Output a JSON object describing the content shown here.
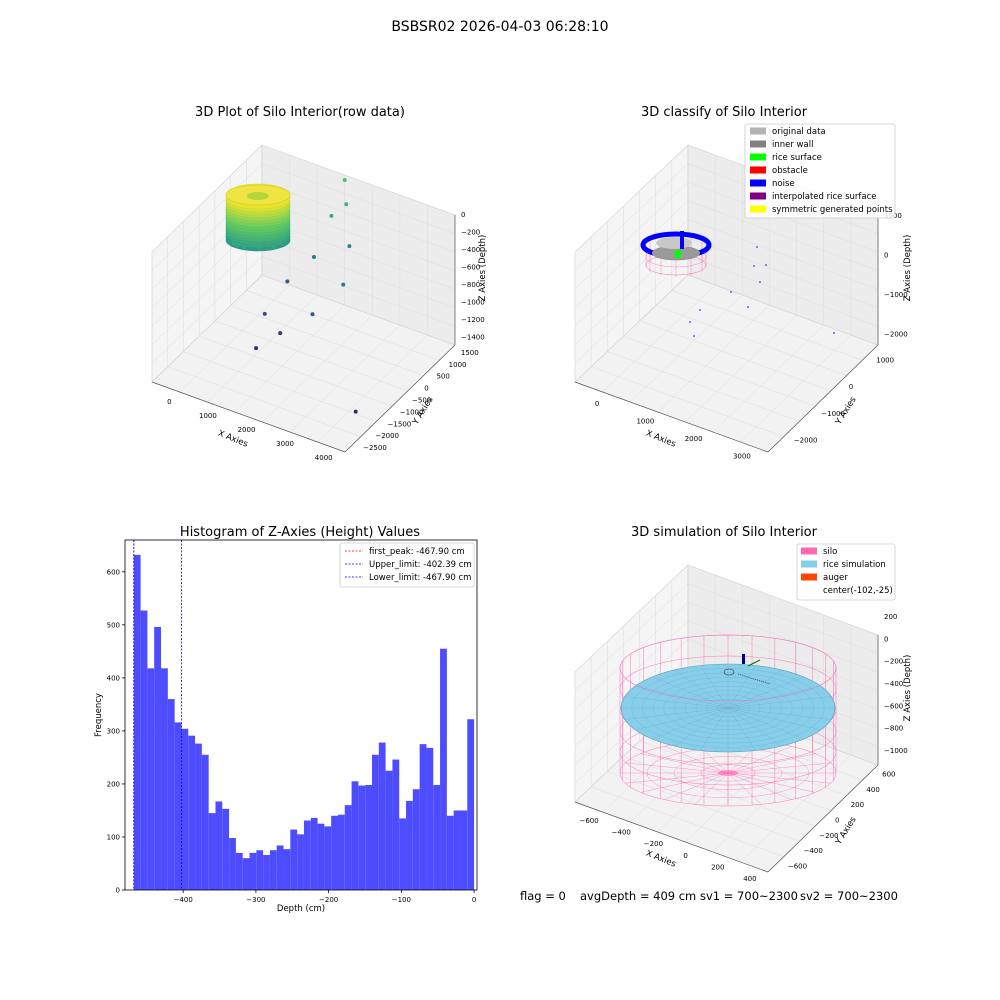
{
  "figure": {
    "suptitle": "BSBSR02 2026-04-03 06:28:10",
    "status": {
      "flag": "flag = 0",
      "avg_depth": "avgDepth = 409 cm",
      "sv1": "sv1 = 700~2300",
      "sv2": "sv2 = 700~2300"
    }
  },
  "chart_data": [
    {
      "type": "scatter",
      "title": "3D Plot of Silo Interior(row data)",
      "xlabel": "X Axies",
      "ylabel": "Y Axies",
      "zlabel": "Z Axies (Depth)",
      "x_ticks": [
        "0",
        "1000",
        "2000",
        "3000",
        "4000"
      ],
      "y_ticks": [
        "1500",
        "1000",
        "500",
        "0",
        "−500",
        "−1000",
        "−1500",
        "−2000",
        "−2500"
      ],
      "z_ticks": [
        "0",
        "−200",
        "−400",
        "−600",
        "−800",
        "−1000",
        "−1200",
        "−1400"
      ],
      "colormap": "viridis",
      "point_cluster": {
        "x_range": [
          -200,
          400
        ],
        "y_range": [
          -500,
          500
        ],
        "z_range": [
          -450,
          0
        ]
      },
      "outlier_points": [
        {
          "x": 2100,
          "y": 500,
          "z": -300
        },
        {
          "x": 2200,
          "y": 400,
          "z": -450
        },
        {
          "x": 1900,
          "y": 300,
          "z": -550
        },
        {
          "x": 2400,
          "y": 200,
          "z": -700
        },
        {
          "x": 1600,
          "y": 100,
          "z": -850
        },
        {
          "x": 2500,
          "y": -200,
          "z": -900
        },
        {
          "x": 1200,
          "y": -300,
          "z": -1000
        },
        {
          "x": 2000,
          "y": -600,
          "z": -1100
        },
        {
          "x": 900,
          "y": -700,
          "z": -1200
        },
        {
          "x": 1400,
          "y": -900,
          "z": -1250
        },
        {
          "x": 1000,
          "y": -1200,
          "z": -1350
        },
        {
          "x": 3800,
          "y": -1800,
          "z": -1400
        }
      ]
    },
    {
      "type": "scatter",
      "title": "3D classify of Silo Interior",
      "xlabel": "X Axies",
      "ylabel": "Y Axies",
      "zlabel": "Z Axies (Depth)",
      "x_ticks": [
        "0",
        "1000",
        "2000",
        "3000"
      ],
      "y_ticks": [
        "1000",
        "0",
        "−1000",
        "−2000"
      ],
      "z_ticks": [
        "1000",
        "0",
        "−1000",
        "−2000"
      ],
      "legend_position": "top-right",
      "legend": [
        {
          "name": "original data",
          "color": "#b3b3b3"
        },
        {
          "name": "inner wall",
          "color": "#808080"
        },
        {
          "name": "rice surface",
          "color": "#00ff00"
        },
        {
          "name": "obstacle",
          "color": "#ff0000"
        },
        {
          "name": "noise",
          "color": "#0000ff"
        },
        {
          "name": "interpolated rice surface",
          "color": "#800080"
        },
        {
          "name": "symmetric generated points",
          "color": "#ffff00"
        }
      ]
    },
    {
      "type": "bar",
      "title": "Histogram of Z-Axies (Height) Values",
      "xlabel": "Depth (cm)",
      "ylabel": "Frequency",
      "xlim": [
        -480,
        4
      ],
      "ylim": [
        0,
        660
      ],
      "x_ticks": [
        -400,
        -300,
        -200,
        -100,
        0
      ],
      "x_tick_labels": [
        "−400",
        "−300",
        "−200",
        "−100",
        "0"
      ],
      "y_ticks": [
        0,
        100,
        200,
        300,
        400,
        500,
        600
      ],
      "bar_color": "#4d4dff",
      "bin_start": -467.9,
      "bin_width": 9.358,
      "values": [
        632,
        527,
        418,
        496,
        418,
        360,
        316,
        304,
        291,
        276,
        255,
        145,
        167,
        153,
        98,
        70,
        60,
        70,
        75,
        66,
        75,
        84,
        77,
        114,
        105,
        131,
        136,
        125,
        120,
        140,
        142,
        160,
        205,
        197,
        198,
        255,
        278,
        225,
        246,
        135,
        168,
        190,
        275,
        268,
        198,
        455,
        140,
        150,
        150,
        322
      ],
      "reference_lines": [
        {
          "name": "first_peak: -467.90 cm",
          "x": -467.9,
          "color": "#ff0000"
        },
        {
          "name": "Upper_limit: -402.39 cm",
          "x": -402.39,
          "color": "#0000ff"
        },
        {
          "name": "Lower_limit: -467.90 cm",
          "x": -467.9,
          "color": "#0000ff"
        }
      ],
      "legend_position": "top-right"
    },
    {
      "type": "scatter",
      "title": "3D simulation of Silo Interior",
      "xlabel": "X Axies",
      "ylabel": "Y Axies",
      "zlabel": "Z Axies (Depth)",
      "x_ticks": [
        "−600",
        "−400",
        "−200",
        "0",
        "200",
        "400"
      ],
      "y_ticks": [
        "600",
        "400",
        "200",
        "0",
        "−200",
        "−400",
        "−600"
      ],
      "z_ticks": [
        "200",
        "0",
        "−200",
        "−400",
        "−600",
        "−800",
        "−1000"
      ],
      "legend_position": "top-right",
      "legend": [
        {
          "name": "silo",
          "color": "#ff69b4"
        },
        {
          "name": "rice simulation",
          "color": "#87ceeb"
        },
        {
          "name": "auger",
          "color": "#ff4500"
        },
        {
          "name": "center(-102,-25)",
          "color": ""
        }
      ]
    }
  ]
}
